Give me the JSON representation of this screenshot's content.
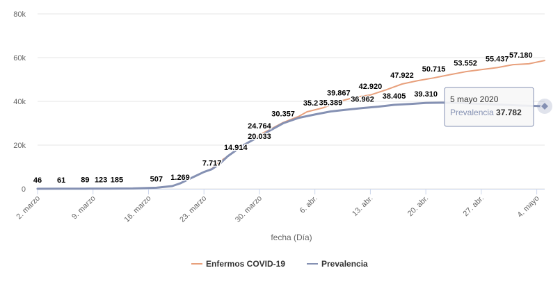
{
  "chart_data": {
    "type": "line",
    "xlabel": "fecha (Día)",
    "x_ticks": [
      "2. marzo",
      "9. marzo",
      "16. marzo",
      "23. marzo",
      "30. marzo",
      "6. abr.",
      "13. abr.",
      "20. abr.",
      "27. abr.",
      "4. mayo"
    ],
    "ylim": [
      0,
      80000
    ],
    "y_ticks": [
      "0",
      "20k",
      "40k",
      "60k",
      "80k"
    ],
    "grid": true,
    "legend_position": "bottom-center",
    "x_start": "2020-03-02",
    "series": [
      {
        "name": "Enfermos COVID-19",
        "color": "#e8a07c",
        "x": [
          "2020-03-02",
          "2020-03-05",
          "2020-03-08",
          "2020-03-11",
          "2020-03-14",
          "2020-03-17",
          "2020-03-19",
          "2020-03-20",
          "2020-03-21",
          "2020-03-22",
          "2020-03-23",
          "2020-03-24",
          "2020-03-25",
          "2020-03-26",
          "2020-03-27",
          "2020-03-28",
          "2020-03-29",
          "2020-03-30",
          "2020-03-31",
          "2020-04-02",
          "2020-04-04",
          "2020-04-05",
          "2020-04-07",
          "2020-04-09",
          "2020-04-11",
          "2020-04-13",
          "2020-04-15",
          "2020-04-17",
          "2020-04-19",
          "2020-04-21",
          "2020-04-23",
          "2020-04-25",
          "2020-04-27",
          "2020-04-29",
          "2020-05-01",
          "2020-05-03",
          "2020-05-05"
        ],
        "values": [
          46,
          61,
          89,
          123,
          185,
          507,
          1269,
          2500,
          4300,
          6000,
          7717,
          9200,
          12500,
          14914,
          17500,
          20033,
          22000,
          24764,
          26500,
          30357,
          33200,
          35231,
          37000,
          39867,
          41800,
          42920,
          45300,
          47922,
          49500,
          50715,
          52200,
          53552,
          54500,
          55437,
          56800,
          57180,
          58700
        ],
        "labels": [
          {
            "x": "2020-03-02",
            "text": "46"
          },
          {
            "x": "2020-03-05",
            "text": "61"
          },
          {
            "x": "2020-03-08",
            "text": "89"
          },
          {
            "x": "2020-03-10",
            "text": "123"
          },
          {
            "x": "2020-03-12",
            "text": "185"
          },
          {
            "x": "2020-03-17",
            "text": "507"
          },
          {
            "x": "2020-03-20",
            "text": "1.269"
          },
          {
            "x": "2020-03-24",
            "text": "7.717"
          },
          {
            "x": "2020-03-27",
            "text": "14.914"
          },
          {
            "x": "2020-03-30",
            "text": "20.033"
          },
          {
            "x": "2020-03-30",
            "text": "24.764"
          },
          {
            "x": "2020-04-02",
            "text": "30.357"
          },
          {
            "x": "2020-04-06",
            "text": "35.231"
          },
          {
            "x": "2020-04-09",
            "text": "39.867"
          },
          {
            "x": "2020-04-13",
            "text": "42.920"
          },
          {
            "x": "2020-04-17",
            "text": "47.922"
          },
          {
            "x": "2020-04-21",
            "text": "50.715"
          },
          {
            "x": "2020-04-25",
            "text": "53.552"
          },
          {
            "x": "2020-04-29",
            "text": "55.437"
          },
          {
            "x": "2020-05-02",
            "text": "57.180"
          }
        ]
      },
      {
        "name": "Prevalencia",
        "color": "#8591b3",
        "x": [
          "2020-03-02",
          "2020-03-05",
          "2020-03-08",
          "2020-03-11",
          "2020-03-14",
          "2020-03-17",
          "2020-03-19",
          "2020-03-20",
          "2020-03-21",
          "2020-03-22",
          "2020-03-23",
          "2020-03-24",
          "2020-03-25",
          "2020-03-26",
          "2020-03-27",
          "2020-03-28",
          "2020-03-29",
          "2020-03-30",
          "2020-03-31",
          "2020-04-02",
          "2020-04-04",
          "2020-04-06",
          "2020-04-08",
          "2020-04-10",
          "2020-04-12",
          "2020-04-14",
          "2020-04-16",
          "2020-04-18",
          "2020-04-20",
          "2020-04-22",
          "2020-04-24",
          "2020-04-26",
          "2020-04-28",
          "2020-04-30",
          "2020-05-02",
          "2020-05-04",
          "2020-05-05"
        ],
        "values": [
          46,
          61,
          89,
          123,
          185,
          507,
          1269,
          2500,
          4300,
          6000,
          7717,
          9000,
          11500,
          14914,
          17500,
          20033,
          22000,
          24000,
          26000,
          30000,
          32500,
          34000,
          35389,
          36200,
          36962,
          37600,
          38405,
          38800,
          39310,
          39400,
          39300,
          39000,
          38700,
          38400,
          38100,
          37900,
          37782
        ],
        "labels": [
          {
            "x": "2020-04-08",
            "text": "35.389"
          },
          {
            "x": "2020-04-12",
            "text": "36.962"
          },
          {
            "x": "2020-04-16",
            "text": "38.405"
          },
          {
            "x": "2020-04-20",
            "text": "39.310"
          }
        ]
      }
    ],
    "tooltip": {
      "x": "2020-05-05",
      "title": "5 mayo 2020",
      "series_name": "Prevalencia",
      "value": "37.782"
    }
  }
}
